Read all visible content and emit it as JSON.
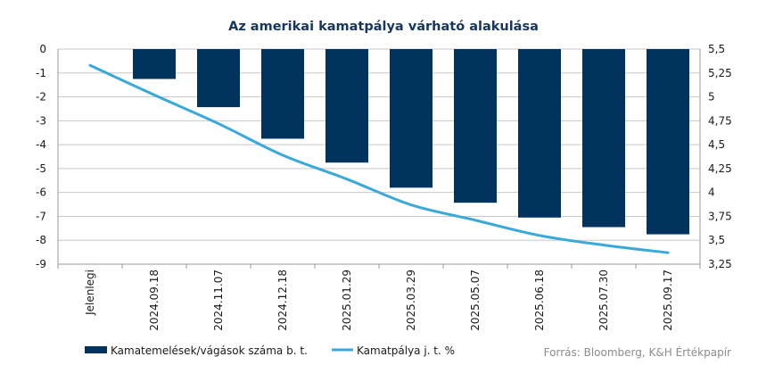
{
  "chart_data": {
    "type": "bar",
    "title": "Az amerikai kamatpálya várható alakulása",
    "categories": [
      "Jelenlegi",
      "2024.09.18",
      "2024.11.07",
      "2024.12.18",
      "2025.01.29",
      "2025.03.29",
      "2025.05.07",
      "2025.06.18",
      "2025.07.30",
      "2025.09.17"
    ],
    "series": [
      {
        "name": "Kamatemelések/vágások száma b. t.",
        "type": "bar",
        "axis": "left",
        "color": "#00335e",
        "values": [
          null,
          -1.25,
          -2.43,
          -3.75,
          -4.75,
          -5.8,
          -6.43,
          -7.05,
          -7.45,
          -7.75
        ]
      },
      {
        "name": "Kamatpálya j. t. %",
        "type": "line",
        "axis": "right",
        "color": "#3aa9da",
        "values": [
          5.33,
          5.02,
          4.72,
          4.39,
          4.14,
          3.87,
          3.71,
          3.55,
          3.45,
          3.37
        ]
      }
    ],
    "y_left": {
      "ylim": [
        -9,
        0
      ],
      "ticks": [
        "0",
        "-1",
        "-2",
        "-3",
        "-4",
        "-5",
        "-6",
        "-7",
        "-8",
        "-9"
      ]
    },
    "y_right": {
      "ylim": [
        3.25,
        5.5
      ],
      "ticks": [
        "5,5",
        "5,25",
        "5",
        "4,75",
        "4,5",
        "4,25",
        "4",
        "3,75",
        "3,5",
        "3,25"
      ]
    },
    "grid": true,
    "legend_position": "bottom-left"
  },
  "source_text": "Forrás: Bloomberg,  K&H Értékpapír"
}
